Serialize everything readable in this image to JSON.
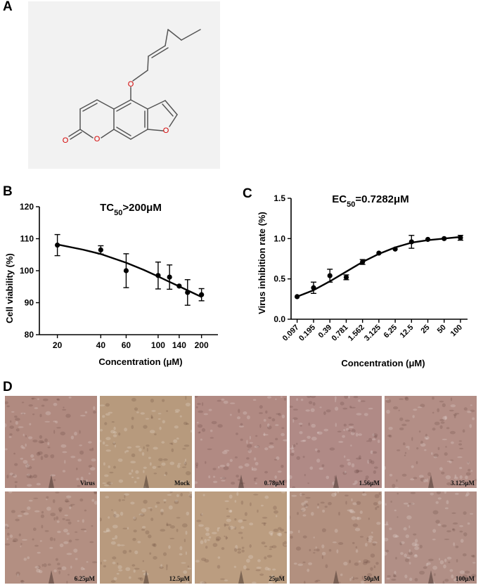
{
  "panels": {
    "a": "A",
    "b": "B",
    "c": "C",
    "d": "D"
  },
  "molecule": {
    "atoms": [
      {
        "label": "O",
        "color": "#d40000"
      },
      {
        "label": "O",
        "color": "#d40000"
      },
      {
        "label": "O",
        "color": "#d40000"
      },
      {
        "label": "O",
        "color": "#d40000"
      }
    ]
  },
  "chart_data": [
    {
      "type": "scatter",
      "title_main": "TC",
      "title_sub": "50",
      "title_rest": ">200μM",
      "xlabel": "Concentration (μM)",
      "ylabel": "Cell viability (%)",
      "x_scale": "log",
      "ylim": [
        80,
        120
      ],
      "yticks": [
        "80",
        "90",
        "100",
        "110",
        "120"
      ],
      "xticks": [
        "20",
        "40",
        "60",
        "100",
        "140",
        "200"
      ],
      "x": [
        20,
        40,
        60,
        100,
        120,
        140,
        160,
        200
      ],
      "y": [
        108,
        106.5,
        100,
        98.5,
        98,
        95.2,
        93.2,
        92.5
      ],
      "err": [
        3.3,
        1.3,
        5.3,
        4.2,
        3.8,
        0,
        4,
        1.9
      ],
      "fit": {
        "x": [
          20,
          30,
          40,
          60,
          80,
          100,
          120,
          140,
          170,
          200
        ],
        "y": [
          108.2,
          106.6,
          105.2,
          102.5,
          100.2,
          98.2,
          96.5,
          95.1,
          93.3,
          91.8
        ]
      }
    },
    {
      "type": "scatter",
      "title_main": "EC",
      "title_sub": "50",
      "title_rest": "=0.7282μM",
      "xlabel": "Concentration (μM)",
      "ylabel": "Virus inhibition rate (%)",
      "x_scale": "log",
      "ylim": [
        0,
        1.5
      ],
      "yticks": [
        "0.0",
        "0.5",
        "1.0",
        "1.5"
      ],
      "xticks": [
        "0.097",
        "0.195",
        "0.39",
        "0.781",
        "1.562",
        "3.125",
        "6.25",
        "12.5",
        "25",
        "50",
        "100"
      ],
      "x": [
        0.097,
        0.195,
        0.39,
        0.781,
        1.562,
        3.125,
        6.25,
        12.5,
        25,
        50,
        100
      ],
      "y": [
        0.28,
        0.39,
        0.54,
        0.52,
        0.71,
        0.82,
        0.87,
        0.96,
        0.99,
        1.0,
        1.01
      ],
      "err": [
        0,
        0.07,
        0.08,
        0.03,
        0.03,
        0,
        0,
        0.08,
        0,
        0,
        0.03
      ],
      "fit": {
        "x": [
          0.097,
          0.195,
          0.39,
          0.781,
          1.562,
          3.125,
          6.25,
          12.5,
          25,
          50,
          100
        ],
        "y": [
          0.28,
          0.36,
          0.47,
          0.59,
          0.71,
          0.81,
          0.89,
          0.95,
          0.98,
          1.0,
          1.02
        ]
      }
    }
  ],
  "micrographs": [
    {
      "label": "Virus",
      "tone": "#b08a80"
    },
    {
      "label": "Mock",
      "tone": "#b79a7d"
    },
    {
      "label": "0.78μM",
      "tone": "#b18a83"
    },
    {
      "label": "1.56μM",
      "tone": "#b08a86"
    },
    {
      "label": "3.125μM",
      "tone": "#b38e86"
    },
    {
      "label": "6.25μM",
      "tone": "#b38f82"
    },
    {
      "label": "12.5μM",
      "tone": "#b89a7e"
    },
    {
      "label": "25μM",
      "tone": "#bb9d80"
    },
    {
      "label": "50μM",
      "tone": "#b2907f"
    },
    {
      "label": "100μM",
      "tone": "#b18f86"
    }
  ]
}
